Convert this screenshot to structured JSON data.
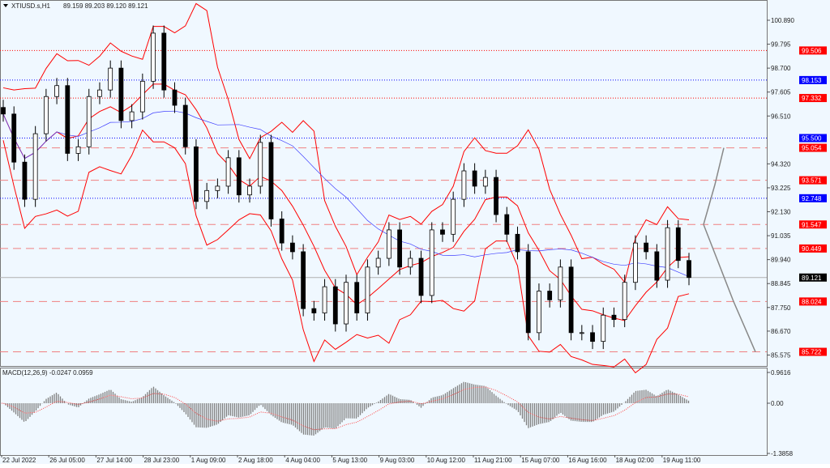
{
  "header": {
    "symbol_timeframe": "XTIUSD.s,H1",
    "ohlc": "89.159 89.203 89.120 89.121"
  },
  "macd_header": "MACD(12,26,9) -0.0247 0.0959",
  "colors": {
    "background": "#f0f8ff",
    "bull": "#000000",
    "bands": "#ff0000",
    "ma": "#4040ff",
    "red_level": "#ff0000",
    "blue_level": "#0000ff",
    "current": "#000000",
    "histogram": "#808080",
    "signal": "#ff4040"
  },
  "chart_data": {
    "type": "candlestick",
    "price_ticks": [
      "100.890",
      "99.795",
      "98.700",
      "97.605",
      "96.510",
      "94.320",
      "93.225",
      "92.130",
      "91.035",
      "89.940",
      "88.845",
      "87.750",
      "86.670",
      "85.575"
    ],
    "ylim": [
      85.4,
      101.4
    ],
    "x_ticks": [
      "22 Jul 2022",
      "26 Jul 05:00",
      "27 Jul 14:00",
      "28 Jul 23:00",
      "1 Aug 09:00",
      "2 Aug 18:00",
      "4 Aug 04:00",
      "5 Aug 13:00",
      "9 Aug 03:00",
      "10 Aug 12:00",
      "11 Aug 21:00",
      "15 Aug 07:00",
      "16 Aug 16:00",
      "18 Aug 02:00",
      "19 Aug 11:00"
    ],
    "close": [
      96.6,
      94.4,
      92.7,
      95.7,
      97.4,
      97.9,
      94.8,
      95.1,
      97.4,
      97.7,
      98.7,
      96.3,
      96.7,
      98.1,
      100.3,
      97.7,
      97.0,
      95.1,
      92.6,
      93.1,
      93.3,
      94.6,
      92.9,
      93.3,
      95.3,
      91.8,
      90.7,
      90.3,
      87.7,
      87.5,
      88.7,
      87.0,
      88.9,
      87.5,
      89.6,
      90.0,
      91.3,
      89.6,
      90.0,
      88.3,
      91.3,
      91.1,
      92.7,
      94.0,
      93.3,
      93.7,
      92.0,
      91.1,
      90.3,
      86.6,
      88.5,
      88.1,
      89.6,
      86.6,
      86.6,
      86.2,
      87.4,
      87.2,
      88.9,
      90.7,
      90.3,
      89.0,
      91.4,
      89.9,
      89.121
    ],
    "levels": [
      {
        "price": "99.506",
        "kind": "red-dotted"
      },
      {
        "price": "98.153",
        "kind": "blue-dotted"
      },
      {
        "price": "97.332",
        "kind": "red-dotted"
      },
      {
        "price": "95.500",
        "kind": "blue-dotted"
      },
      {
        "price": "95.054",
        "kind": "red-dashed"
      },
      {
        "price": "93.571",
        "kind": "red-dashed"
      },
      {
        "price": "92.748",
        "kind": "blue-dotted"
      },
      {
        "price": "91.547",
        "kind": "red-dashed"
      },
      {
        "price": "90.449",
        "kind": "red-dashed"
      },
      {
        "price": "89.121",
        "kind": "current"
      },
      {
        "price": "88.024",
        "kind": "red-dashed"
      },
      {
        "price": "85.722",
        "kind": "red-dashed"
      }
    ],
    "macd": {
      "ticks": [
        "0.9616",
        "0.00",
        "-1.3858"
      ],
      "ylim": [
        -1.3858,
        0.9616
      ]
    }
  }
}
